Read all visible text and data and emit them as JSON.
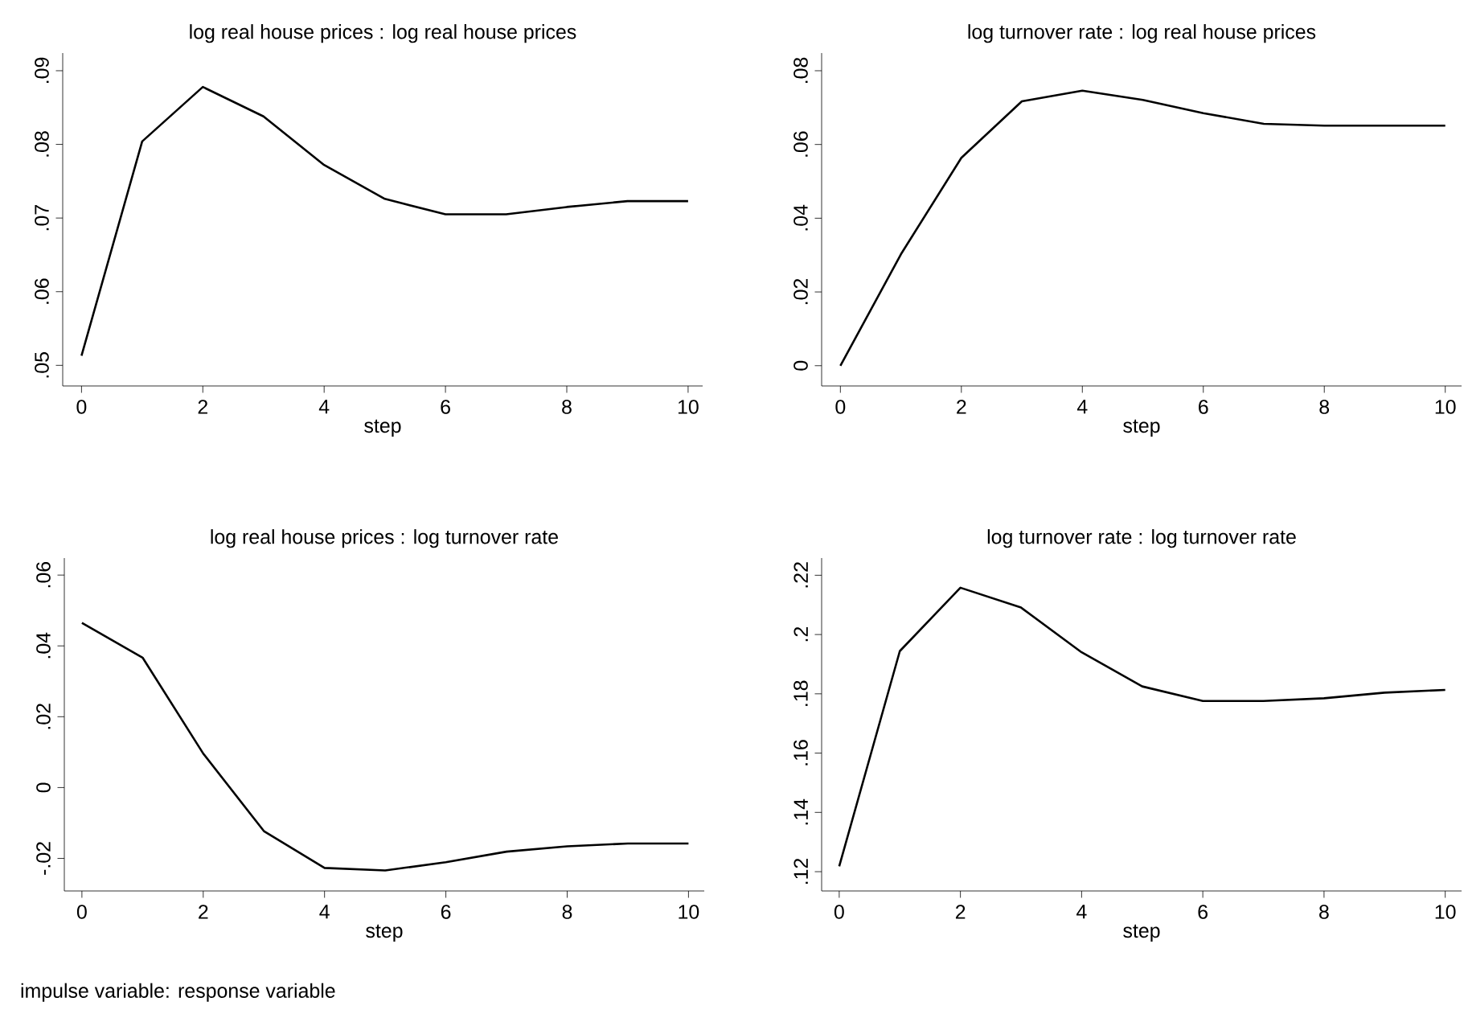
{
  "chart_data": [
    {
      "type": "line",
      "title": "log real house prices : log real house prices",
      "xlabel": "step",
      "color": "#000000",
      "line_style": "solid",
      "x": [
        0,
        1,
        2,
        3,
        4,
        5,
        6,
        7,
        8,
        9,
        10
      ],
      "values": [
        0.0513,
        0.0804,
        0.0878,
        0.0838,
        0.0772,
        0.0726,
        0.0705,
        0.0705,
        0.0715,
        0.0723,
        0.0723
      ],
      "xlim": [
        -0.31,
        10.24
      ],
      "ylim": [
        0.0472,
        0.0924
      ],
      "xticks": [
        0,
        2,
        4,
        6,
        8,
        10
      ],
      "yticks": [
        {
          "value": 0.05,
          "label": ".05"
        },
        {
          "value": 0.06,
          "label": ".06"
        },
        {
          "value": 0.07,
          "label": ".07"
        },
        {
          "value": 0.08,
          "label": ".08"
        },
        {
          "value": 0.09,
          "label": ".09"
        }
      ]
    },
    {
      "type": "line",
      "title": "log turnover rate : log real house prices",
      "xlabel": "step",
      "color": "#000000",
      "line_style": "solid",
      "x": [
        0,
        1,
        2,
        3,
        4,
        5,
        6,
        7,
        8,
        9,
        10
      ],
      "values": [
        0.0,
        0.0302,
        0.0564,
        0.0717,
        0.0746,
        0.0721,
        0.0685,
        0.0656,
        0.0651,
        0.0651,
        0.0651
      ],
      "xlim": [
        -0.31,
        10.27
      ],
      "ylim": [
        -0.0055,
        0.0848
      ],
      "xticks": [
        0,
        2,
        4,
        6,
        8,
        10
      ],
      "yticks": [
        0,
        {
          "value": 0.02,
          "label": ".02"
        },
        {
          "value": 0.04,
          "label": ".04"
        },
        {
          "value": 0.06,
          "label": ".06"
        },
        {
          "value": 0.08,
          "label": ".08"
        }
      ]
    },
    {
      "type": "line",
      "title": "log real house prices : log turnover rate",
      "xlabel": "step",
      "color": "#000000",
      "line_style": "solid",
      "x": [
        0,
        1,
        2,
        3,
        4,
        5,
        6,
        7,
        8,
        9,
        10
      ],
      "values": [
        0.0465,
        0.0367,
        0.0096,
        -0.0123,
        -0.0227,
        -0.0234,
        -0.0211,
        -0.0181,
        -0.0166,
        -0.0158,
        -0.0158
      ],
      "xlim": [
        -0.29,
        10.26
      ],
      "ylim": [
        -0.0292,
        0.0648
      ],
      "xticks": [
        0,
        2,
        4,
        6,
        8,
        10
      ],
      "yticks": [
        {
          "value": -0.02,
          "label": "-.02"
        },
        0,
        {
          "value": 0.02,
          "label": ".02"
        },
        {
          "value": 0.04,
          "label": ".04"
        },
        {
          "value": 0.06,
          "label": ".06"
        }
      ],
      "annotations": [
        "impulse variable: response variable"
      ]
    },
    {
      "type": "line",
      "title": "log turnover rate : log turnover rate",
      "xlabel": "step",
      "color": "#000000",
      "line_style": "solid",
      "x": [
        0,
        1,
        2,
        3,
        4,
        5,
        6,
        7,
        8,
        9,
        10
      ],
      "values": [
        0.1218,
        0.1944,
        0.2158,
        0.2091,
        0.194,
        0.1825,
        0.1776,
        0.1776,
        0.1785,
        0.1804,
        0.1813
      ],
      "xlim": [
        -0.29,
        10.27
      ],
      "ylim": [
        0.1135,
        0.2258
      ],
      "xticks": [
        0,
        2,
        4,
        6,
        8,
        10
      ],
      "yticks": [
        {
          "value": 0.12,
          "label": ".12"
        },
        {
          "value": 0.14,
          "label": ".14"
        },
        {
          "value": 0.16,
          "label": ".16"
        },
        {
          "value": 0.18,
          "label": ".18"
        },
        {
          "value": 0.2,
          "label": ".2"
        },
        {
          "value": 0.22,
          "label": ".22"
        }
      ]
    }
  ]
}
